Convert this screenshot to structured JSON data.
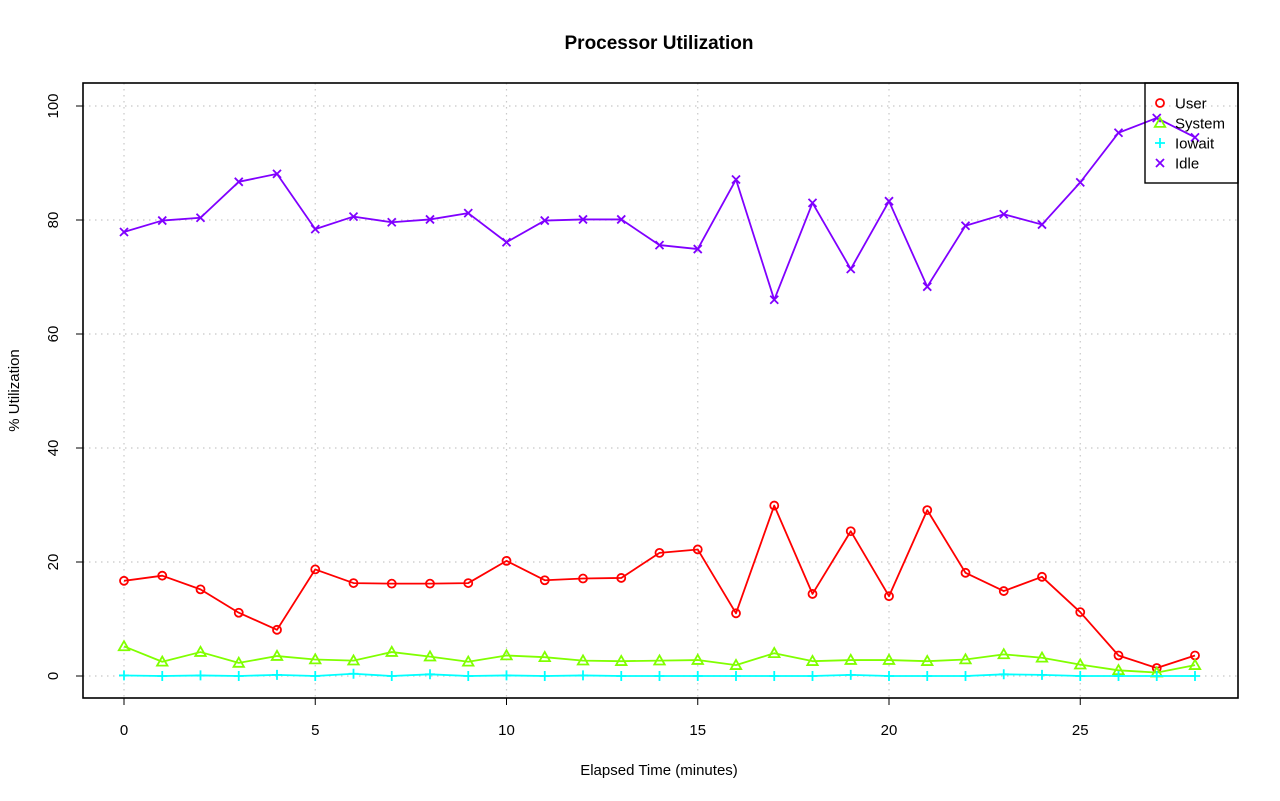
{
  "chart_data": {
    "type": "line",
    "title": "Processor Utilization",
    "xlabel": "Elapsed Time (minutes)",
    "ylabel": "% Utilization",
    "xlim": [
      -1,
      29.4
    ],
    "ylim": [
      -3.8,
      104
    ],
    "x_ticks": [
      0,
      5,
      10,
      15,
      20,
      25
    ],
    "y_ticks": [
      0,
      20,
      40,
      60,
      80,
      100
    ],
    "grid": true,
    "legend_position": "top-right",
    "x": [
      0,
      1,
      2,
      3,
      4,
      5,
      6,
      7,
      8,
      9,
      10,
      11,
      12,
      13,
      14,
      15,
      16,
      17,
      18,
      19,
      20,
      21,
      22,
      23,
      24,
      25,
      26,
      27,
      28
    ],
    "series": [
      {
        "name": "User",
        "color": "#ff0000",
        "marker": "circle",
        "values": [
          16.7,
          17.6,
          15.2,
          11.1,
          8.1,
          18.7,
          16.3,
          16.2,
          16.2,
          16.3,
          20.2,
          16.8,
          17.1,
          17.2,
          21.6,
          22.2,
          11.0,
          29.9,
          14.4,
          25.4,
          14.0,
          29.1,
          18.1,
          14.9,
          17.4,
          11.2,
          3.6,
          1.4,
          3.6
        ]
      },
      {
        "name": "System",
        "color": "#80ff00",
        "marker": "triangle",
        "values": [
          5.2,
          2.5,
          4.2,
          2.3,
          3.5,
          2.9,
          2.7,
          4.2,
          3.4,
          2.5,
          3.6,
          3.3,
          2.7,
          2.6,
          2.7,
          2.8,
          1.9,
          4.0,
          2.6,
          2.8,
          2.8,
          2.6,
          2.9,
          3.8,
          3.2,
          2.0,
          1.0,
          0.6,
          1.9
        ]
      },
      {
        "name": "Iowait",
        "color": "#00ffff",
        "marker": "plus",
        "values": [
          0.1,
          0.0,
          0.1,
          0.0,
          0.2,
          0.0,
          0.4,
          0.0,
          0.3,
          0.0,
          0.1,
          0.0,
          0.1,
          0.0,
          0.0,
          0.0,
          0.0,
          0.0,
          0.0,
          0.2,
          0.0,
          0.0,
          0.0,
          0.3,
          0.2,
          0.0,
          0.0,
          0.0,
          0.0
        ]
      },
      {
        "name": "Idle",
        "color": "#8000ff",
        "marker": "x",
        "values": [
          77.9,
          79.9,
          80.4,
          86.7,
          88.1,
          78.4,
          80.6,
          79.6,
          80.1,
          81.2,
          76.1,
          79.9,
          80.1,
          80.1,
          75.6,
          74.9,
          87.1,
          66.0,
          83.0,
          71.4,
          83.3,
          68.3,
          79.0,
          81.0,
          79.2,
          86.6,
          95.3,
          97.9,
          94.5
        ]
      }
    ]
  }
}
